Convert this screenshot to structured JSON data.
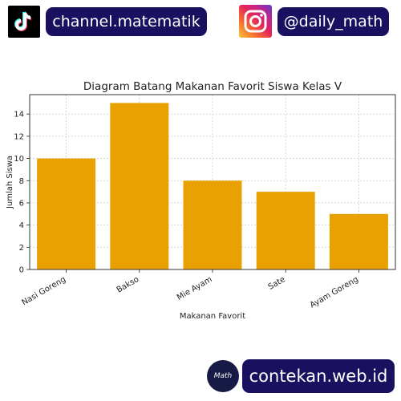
{
  "header": {
    "tiktok_handle": "channel.matematik",
    "instagram_handle": "@daily_math"
  },
  "footer": {
    "logo_text": "Math",
    "website": "contekan.web.id"
  },
  "icons": {
    "tiktok": "tiktok-icon",
    "instagram": "instagram-icon"
  },
  "colors": {
    "bar": "#e8a100",
    "badge": "#1a1060"
  },
  "chart_data": {
    "type": "bar",
    "title": "Diagram Batang Makanan Favorit Siswa Kelas V",
    "xlabel": "Makanan Favorit",
    "ylabel": "Jumlah Siswa",
    "categories": [
      "Nasi Goreng",
      "Bakso",
      "Mie Ayam",
      "Sate",
      "Ayam Goreng"
    ],
    "values": [
      10,
      15,
      8,
      7,
      5
    ],
    "ylim": [
      0,
      15.75
    ],
    "yticks": [
      "0",
      "2",
      "4",
      "6",
      "8",
      "10",
      "12",
      "14"
    ],
    "grid": true
  }
}
